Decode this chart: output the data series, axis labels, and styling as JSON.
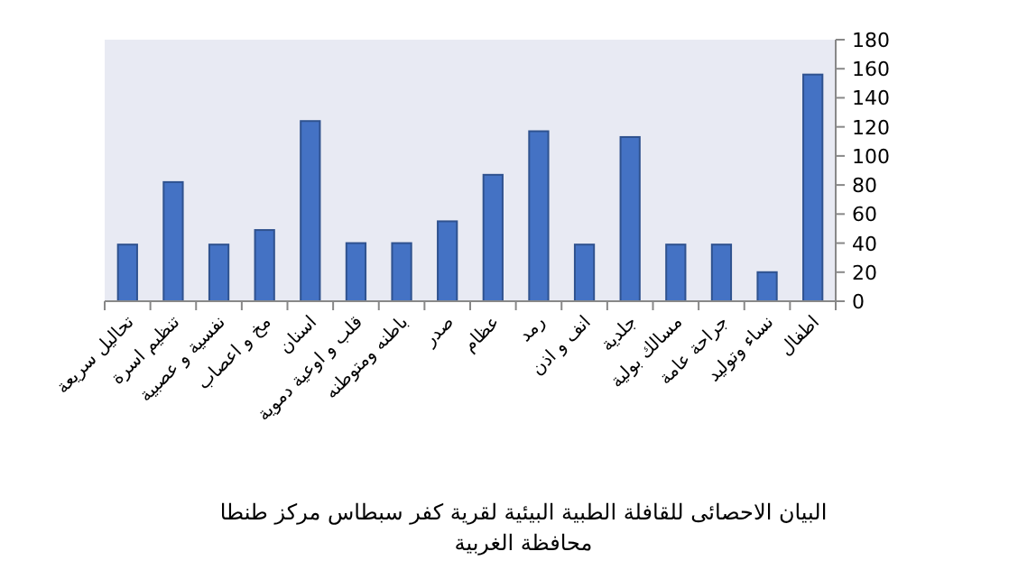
{
  "chart_data": {
    "type": "bar",
    "title": "البيان الاحصائى للقافلة الطبية البيئية لقرية كفر سبطاس مركز طنطا محافظة الغربية",
    "categories": [
      "تحاليل سريعة",
      "تنظيم اسرة",
      "نفسية و عصبية",
      "مخ و اعصاب",
      "اسنان",
      "قلب و اوعية دموية",
      "باطنه ومتوطنه",
      "صدر",
      "عظام",
      "رمد",
      "انف و اذن",
      "جلدية",
      "مسالك بولية",
      "جراحة عامة",
      "نساء وتوليد",
      "اطفال"
    ],
    "values": [
      39,
      82,
      39,
      49,
      124,
      40,
      40,
      55,
      87,
      117,
      39,
      113,
      39,
      39,
      20,
      156
    ],
    "color": "#4472c4",
    "ylim": [
      0,
      180
    ],
    "yticks": [
      0,
      20,
      40,
      60,
      80,
      100,
      120,
      140,
      160,
      180
    ],
    "grid": false
  }
}
